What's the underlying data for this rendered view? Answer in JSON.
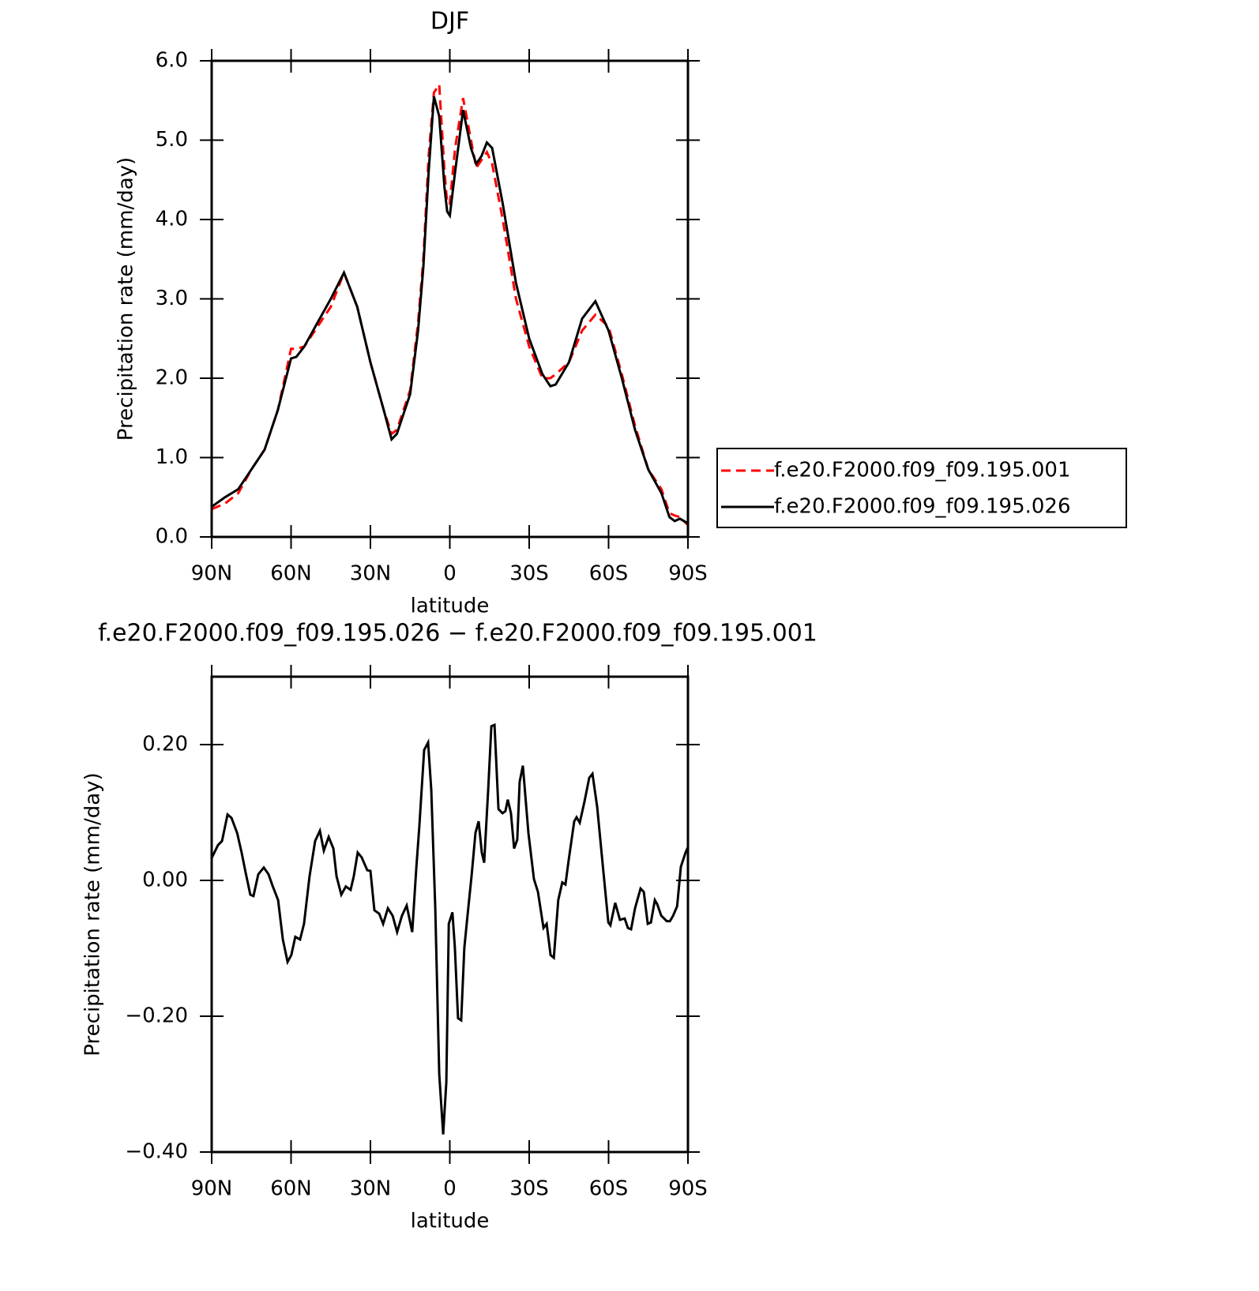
{
  "chart_data": [
    {
      "type": "line",
      "title": "DJF",
      "x_label": "latitude",
      "y_label": "Precipitation rate (mm/day)",
      "x": [
        90,
        85,
        80,
        75,
        70,
        65,
        60,
        58,
        55,
        50,
        45,
        40,
        35,
        30,
        25,
        22,
        20,
        15,
        12,
        10,
        8,
        6,
        4,
        2,
        1,
        0,
        -2,
        -5,
        -8,
        -10,
        -12,
        -14,
        -16,
        -20,
        -25,
        -30,
        -35,
        -38,
        -40,
        -45,
        -50,
        -55,
        -60,
        -65,
        -70,
        -75,
        -80,
        -83,
        -85,
        -87,
        -90
      ],
      "series": [
        {
          "name": "f.e20.F2000.f09_f09.195.001",
          "color": "#ff0000",
          "line_style": "dashed",
          "values": [
            0.35,
            0.42,
            0.55,
            0.85,
            1.1,
            1.6,
            2.37,
            2.37,
            2.4,
            2.65,
            2.9,
            3.33,
            2.9,
            2.2,
            1.6,
            1.3,
            1.35,
            1.85,
            2.7,
            3.5,
            4.8,
            5.6,
            5.7,
            4.6,
            4.2,
            4.2,
            4.9,
            5.53,
            5.0,
            4.65,
            4.75,
            4.85,
            4.7,
            4.0,
            3.0,
            2.4,
            2.0,
            2.0,
            2.05,
            2.2,
            2.6,
            2.8,
            2.65,
            2.05,
            1.4,
            0.85,
            0.6,
            0.3,
            0.27,
            0.25,
            0.15
          ]
        },
        {
          "name": "f.e20.F2000.f09_f09.195.026",
          "color": "#000000",
          "line_style": "solid",
          "values": [
            0.38,
            0.5,
            0.6,
            0.85,
            1.1,
            1.6,
            2.25,
            2.27,
            2.4,
            2.7,
            3.0,
            3.33,
            2.9,
            2.2,
            1.6,
            1.23,
            1.3,
            1.8,
            2.6,
            3.4,
            4.6,
            5.55,
            5.3,
            4.4,
            4.1,
            4.05,
            4.6,
            5.38,
            4.9,
            4.7,
            4.8,
            4.97,
            4.9,
            4.2,
            3.2,
            2.5,
            2.05,
            1.9,
            1.92,
            2.2,
            2.75,
            2.97,
            2.6,
            2.0,
            1.35,
            0.85,
            0.55,
            0.25,
            0.2,
            0.23,
            0.17
          ]
        }
      ],
      "xlim": [
        90,
        -90
      ],
      "xticks": [
        {
          "value": 90,
          "label": "90N"
        },
        {
          "value": 60,
          "label": "60N"
        },
        {
          "value": 30,
          "label": "30N"
        },
        0,
        {
          "value": -30,
          "label": "30S"
        },
        {
          "value": -60,
          "label": "60S"
        },
        {
          "value": -90,
          "label": "90S"
        }
      ],
      "ylim": [
        0,
        6
      ],
      "yticks": [
        {
          "value": 0,
          "label": "0.0"
        },
        {
          "value": 1,
          "label": "1.0"
        },
        {
          "value": 2,
          "label": "2.0"
        },
        {
          "value": 3,
          "label": "3.0"
        },
        {
          "value": 4,
          "label": "4.0"
        },
        {
          "value": 5,
          "label": "5.0"
        },
        {
          "value": 6,
          "label": "6.0"
        }
      ],
      "legend": "right"
    },
    {
      "type": "line",
      "title": "f.e20.F2000.f09_f09.195.026 − f.e20.F2000.f09_f09.195.001",
      "x_label": "latitude",
      "y_label": "Precipitation rate (mm/day)",
      "x": [
        90,
        87.6,
        86.1,
        84,
        82.5,
        80.4,
        78.7,
        77.2,
        75.4,
        74.2,
        72.4,
        70.3,
        68.5,
        67,
        64.9,
        63.1,
        61.3,
        59.9,
        58.4,
        56.6,
        55.1,
        53,
        50.9,
        49.1,
        47.6,
        45.8,
        44,
        42.8,
        41,
        39.3,
        37.5,
        36.3,
        34.8,
        33.3,
        31.2,
        30,
        28.5,
        26.7,
        25.2,
        23.4,
        21.6,
        19.9,
        18.1,
        16.3,
        14.2,
        12.7,
        11.5,
        9.7,
        8.2,
        7,
        5.5,
        4,
        2.5,
        1.3,
        0.4,
        -1,
        -1.9,
        -3.1,
        -4.3,
        -5.5,
        -6.7,
        -8.2,
        -9.7,
        -10.9,
        -12.1,
        -13,
        -14.5,
        -15.7,
        -16.9,
        -18.4,
        -19.9,
        -21,
        -21.9,
        -23.1,
        -24.3,
        -25.5,
        -26.4,
        -27.6,
        -29.7,
        -31.8,
        -33.3,
        -35.4,
        -36.6,
        -38.1,
        -39.3,
        -41,
        -42.5,
        -43.7,
        -44.9,
        -47,
        -47.9,
        -49.1,
        -50.9,
        -52.7,
        -53.9,
        -55.7,
        -57.8,
        -59.9,
        -60.7,
        -62.5,
        -64.3,
        -66.1,
        -67.3,
        -68.5,
        -70,
        -72.1,
        -73.3,
        -74.8,
        -76,
        -77.5,
        -78.4,
        -79.9,
        -82,
        -83.2,
        -84.4,
        -85.9,
        -87.3,
        -89.1,
        -90
      ],
      "series": [
        {
          "color": "#000000",
          "line_style": "solid",
          "values": [
            0.033,
            0.052,
            0.058,
            0.097,
            0.092,
            0.07,
            0.041,
            0.012,
            -0.021,
            -0.023,
            0.009,
            0.019,
            0.009,
            -0.008,
            -0.029,
            -0.087,
            -0.12,
            -0.11,
            -0.083,
            -0.087,
            -0.064,
            0.006,
            0.058,
            0.073,
            0.044,
            0.064,
            0.047,
            0.006,
            -0.021,
            -0.009,
            -0.014,
            0.006,
            0.041,
            0.034,
            0.015,
            0.014,
            -0.044,
            -0.049,
            -0.064,
            -0.041,
            -0.052,
            -0.076,
            -0.052,
            -0.037,
            -0.076,
            0.017,
            0.081,
            0.192,
            0.203,
            0.134,
            -0.041,
            -0.285,
            -0.374,
            -0.297,
            -0.064,
            -0.047,
            -0.099,
            -0.203,
            -0.206,
            -0.099,
            -0.052,
            0.006,
            0.07,
            0.087,
            0.041,
            0.026,
            0.134,
            0.227,
            0.229,
            0.105,
            0.099,
            0.102,
            0.119,
            0.099,
            0.047,
            0.06,
            0.145,
            0.169,
            0.07,
            0.002,
            -0.017,
            -0.07,
            -0.064,
            -0.11,
            -0.114,
            -0.029,
            -0.003,
            -0.006,
            0.029,
            0.087,
            0.093,
            0.085,
            0.116,
            0.151,
            0.157,
            0.108,
            0.023,
            -0.062,
            -0.066,
            -0.033,
            -0.058,
            -0.056,
            -0.07,
            -0.072,
            -0.041,
            -0.012,
            -0.017,
            -0.064,
            -0.062,
            -0.029,
            -0.035,
            -0.052,
            -0.06,
            -0.06,
            -0.052,
            -0.038,
            0.02,
            0.041,
            0.049
          ]
        }
      ],
      "xlim": [
        90,
        -90
      ],
      "xticks": [
        {
          "value": 90,
          "label": "90N"
        },
        {
          "value": 60,
          "label": "60N"
        },
        {
          "value": 30,
          "label": "30N"
        },
        0,
        {
          "value": -30,
          "label": "30S"
        },
        {
          "value": -60,
          "label": "60S"
        },
        {
          "value": -90,
          "label": "90S"
        }
      ],
      "ylim": [
        -0.4,
        0.3
      ],
      "yticks": [
        {
          "value": -0.4,
          "label": "−0.40"
        },
        {
          "value": -0.2,
          "label": "−0.20"
        },
        {
          "value": 0,
          "label": "0.00"
        },
        {
          "value": 0.2,
          "label": "0.20"
        }
      ]
    }
  ]
}
